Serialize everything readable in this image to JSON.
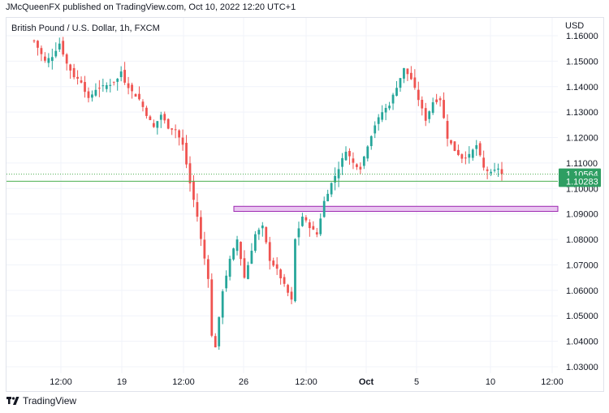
{
  "header": {
    "publish_line": "JMcQueenFX published on TradingView.com, Oct 10, 2022 12:20 UTC+1",
    "symbol_line": "British Pound / U.S. Dollar, 1h, FXCM",
    "currency": "USD"
  },
  "footer": {
    "brand": "TradingView",
    "logo_icon": "tradingview-logo-icon"
  },
  "colors": {
    "up": "#26a69a",
    "down": "#ef5350",
    "support_line": "#4caf50",
    "zone_fill": "#e9c6f0",
    "zone_border": "#9c27b0",
    "tag": "#2e9e62"
  },
  "chart_data": {
    "type": "candlestick",
    "y_axis": {
      "ticks": [
        "1.16000",
        "1.15000",
        "1.14000",
        "1.13000",
        "1.12000",
        "1.11000",
        "1.10000",
        "1.09000",
        "1.08000",
        "1.07000",
        "1.06000",
        "1.05000",
        "1.04000",
        "1.03000"
      ],
      "ylim": [
        1.03,
        1.16
      ]
    },
    "x_axis": {
      "ticks": [
        "12:00",
        "19",
        "12:00",
        "26",
        "12:00",
        "Oct",
        "5",
        "10",
        "12:00"
      ],
      "range": [
        "Sep 14 2022",
        "Oct 12 2022 12:00"
      ]
    },
    "series": {
      "path": [
        [
          0,
          1.158
        ],
        [
          3,
          1.15
        ],
        [
          5,
          1.152
        ],
        [
          7,
          1.157
        ],
        [
          9,
          1.149
        ],
        [
          11,
          1.144
        ],
        [
          13,
          1.142
        ],
        [
          15,
          1.135
        ],
        [
          17,
          1.139
        ],
        [
          19,
          1.14
        ],
        [
          21,
          1.141
        ],
        [
          23,
          1.143
        ],
        [
          24,
          1.146
        ],
        [
          25,
          1.142
        ],
        [
          27,
          1.138
        ],
        [
          29,
          1.135
        ],
        [
          31,
          1.129
        ],
        [
          33,
          1.124
        ],
        [
          35,
          1.129
        ],
        [
          37,
          1.124
        ],
        [
          39,
          1.123
        ],
        [
          41,
          1.117
        ],
        [
          43,
          1.102
        ],
        [
          45,
          1.089
        ],
        [
          46,
          1.08
        ],
        [
          48,
          1.065
        ],
        [
          49,
          1.042
        ],
        [
          50,
          1.038
        ],
        [
          52,
          1.06
        ],
        [
          54,
          1.072
        ],
        [
          56,
          1.08
        ],
        [
          58,
          1.065
        ],
        [
          59,
          1.07
        ],
        [
          61,
          1.082
        ],
        [
          63,
          1.085
        ],
        [
          65,
          1.072
        ],
        [
          67,
          1.068
        ],
        [
          69,
          1.062
        ],
        [
          71,
          1.056
        ],
        [
          72,
          1.08
        ],
        [
          74,
          1.089
        ],
        [
          76,
          1.085
        ],
        [
          78,
          1.082
        ],
        [
          80,
          1.095
        ],
        [
          82,
          1.102
        ],
        [
          84,
          1.108
        ],
        [
          86,
          1.115
        ],
        [
          88,
          1.11
        ],
        [
          90,
          1.108
        ],
        [
          92,
          1.117
        ],
        [
          94,
          1.125
        ],
        [
          96,
          1.13
        ],
        [
          98,
          1.133
        ],
        [
          100,
          1.14
        ],
        [
          102,
          1.147
        ],
        [
          104,
          1.143
        ],
        [
          106,
          1.135
        ],
        [
          108,
          1.127
        ],
        [
          110,
          1.134
        ],
        [
          112,
          1.135
        ],
        [
          114,
          1.12
        ],
        [
          116,
          1.115
        ],
        [
          118,
          1.112
        ],
        [
          120,
          1.113
        ],
        [
          122,
          1.117
        ],
        [
          124,
          1.108
        ],
        [
          126,
          1.106
        ],
        [
          128,
          1.108
        ],
        [
          129,
          1.1056
        ]
      ],
      "count": 130
    },
    "last_price": "1.10564",
    "support_level": {
      "value": 1.10283,
      "label": "1.10283"
    },
    "resistance_zone": {
      "top": 1.093,
      "bottom": 1.091
    }
  }
}
